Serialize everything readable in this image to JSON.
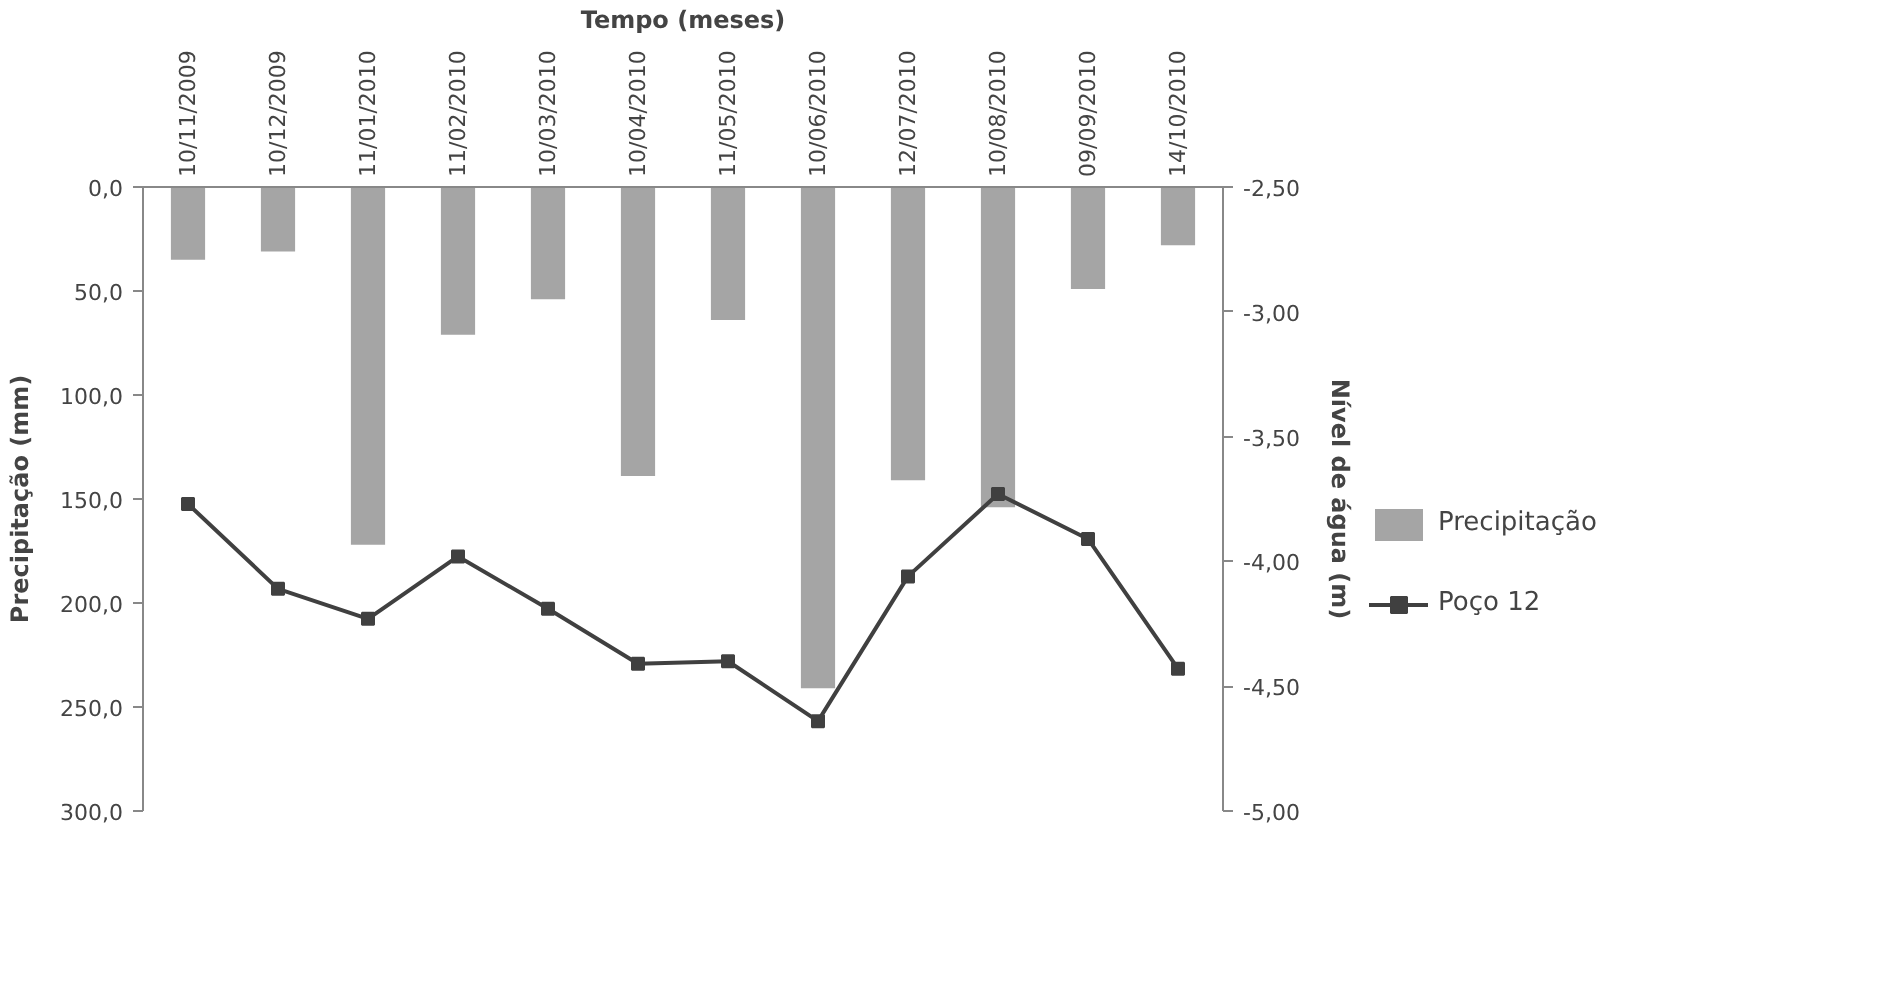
{
  "chart_data": {
    "type": "bar",
    "xlabel": "Tempo (meses)",
    "ylabel": "Precipitação (mm)",
    "y2label": "Nível de água (m)",
    "categories": [
      "10/11/2009",
      "10/12/2009",
      "11/01/2010",
      "11/02/2010",
      "10/03/2010",
      "10/04/2010",
      "11/05/2010",
      "10/06/2010",
      "12/07/2010",
      "10/08/2010",
      "09/09/2010",
      "14/10/2010"
    ],
    "series": [
      {
        "name": "Precipitação",
        "type": "bar",
        "color": "#a5a5a5",
        "values": [
          35,
          31,
          172,
          71,
          54,
          139,
          64,
          241,
          141,
          154,
          49,
          28
        ]
      },
      {
        "name": "Poço 12",
        "type": "line",
        "axis": "y2",
        "marker": "square",
        "color": "#404040",
        "values": [
          -3.77,
          -4.11,
          -4.23,
          -3.98,
          -4.19,
          -4.41,
          -4.4,
          -4.64,
          -4.06,
          -3.73,
          -3.91,
          -4.43
        ]
      }
    ],
    "ylim": [
      300,
      0
    ],
    "yticks": [
      {
        "value": 0,
        "label": "0,0"
      },
      {
        "value": 50,
        "label": "50,0"
      },
      {
        "value": 100,
        "label": "100,0"
      },
      {
        "value": 150,
        "label": "150,0"
      },
      {
        "value": 200,
        "label": "200,0"
      },
      {
        "value": 250,
        "label": "250,0"
      },
      {
        "value": 300,
        "label": "300,0"
      }
    ],
    "y2lim": [
      -5,
      -2.5
    ],
    "y2ticks": [
      {
        "value": -2.5,
        "label": "-2,50"
      },
      {
        "value": -3,
        "label": "-3,00"
      },
      {
        "value": -3.5,
        "label": "-3,50"
      },
      {
        "value": -4,
        "label": "-4,00"
      },
      {
        "value": -4.5,
        "label": "-4,50"
      },
      {
        "value": -5,
        "label": "-5,00"
      }
    ],
    "legend": "right",
    "grid": false
  }
}
